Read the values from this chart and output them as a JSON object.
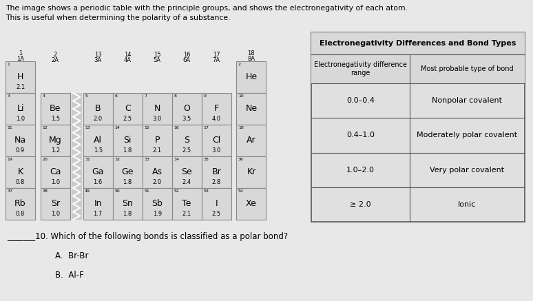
{
  "bg_color": "#d0d0d0",
  "cell_face": "#d8d8d8",
  "cell_edge": "#888888",
  "white_bg": "#f0f0f0",
  "elements": [
    {
      "symbol": "H",
      "en": "2.1",
      "col": 0,
      "row": 0,
      "num": "1"
    },
    {
      "symbol": "He",
      "en": "",
      "col": 8,
      "row": 0,
      "num": "2"
    },
    {
      "symbol": "Li",
      "en": "1.0",
      "col": 0,
      "row": 1,
      "num": "3"
    },
    {
      "symbol": "Be",
      "en": "1.5",
      "col": 1,
      "row": 1,
      "num": "4"
    },
    {
      "symbol": "B",
      "en": "2.0",
      "col": 2,
      "row": 1,
      "num": "5"
    },
    {
      "symbol": "C",
      "en": "2.5",
      "col": 3,
      "row": 1,
      "num": "6"
    },
    {
      "symbol": "N",
      "en": "3.0",
      "col": 4,
      "row": 1,
      "num": "7"
    },
    {
      "symbol": "O",
      "en": "3.5",
      "col": 5,
      "row": 1,
      "num": "8"
    },
    {
      "symbol": "F",
      "en": "4.0",
      "col": 6,
      "row": 1,
      "num": "9"
    },
    {
      "symbol": "Ne",
      "en": "",
      "col": 8,
      "row": 1,
      "num": "10"
    },
    {
      "symbol": "Na",
      "en": "0.9",
      "col": 0,
      "row": 2,
      "num": "11"
    },
    {
      "symbol": "Mg",
      "en": "1.2",
      "col": 1,
      "row": 2,
      "num": "12"
    },
    {
      "symbol": "Al",
      "en": "1.5",
      "col": 2,
      "row": 2,
      "num": "13"
    },
    {
      "symbol": "Si",
      "en": "1.8",
      "col": 3,
      "row": 2,
      "num": "14"
    },
    {
      "symbol": "P",
      "en": "2.1",
      "col": 4,
      "row": 2,
      "num": "15"
    },
    {
      "symbol": "S",
      "en": "2.5",
      "col": 5,
      "row": 2,
      "num": "16"
    },
    {
      "symbol": "Cl",
      "en": "3.0",
      "col": 6,
      "row": 2,
      "num": "17"
    },
    {
      "symbol": "Ar",
      "en": "",
      "col": 8,
      "row": 2,
      "num": "18"
    },
    {
      "symbol": "K",
      "en": "0.8",
      "col": 0,
      "row": 3,
      "num": "19"
    },
    {
      "symbol": "Ca",
      "en": "1.0",
      "col": 1,
      "row": 3,
      "num": "20"
    },
    {
      "symbol": "Ga",
      "en": "1.6",
      "col": 2,
      "row": 3,
      "num": "31"
    },
    {
      "symbol": "Ge",
      "en": "1.8",
      "col": 3,
      "row": 3,
      "num": "32"
    },
    {
      "symbol": "As",
      "en": "2.0",
      "col": 4,
      "row": 3,
      "num": "33"
    },
    {
      "symbol": "Se",
      "en": "2.4",
      "col": 5,
      "row": 3,
      "num": "34"
    },
    {
      "symbol": "Br",
      "en": "2.8",
      "col": 6,
      "row": 3,
      "num": "35"
    },
    {
      "symbol": "Kr",
      "en": "",
      "col": 8,
      "row": 3,
      "num": "36"
    },
    {
      "symbol": "Rb",
      "en": "0.8",
      "col": 0,
      "row": 4,
      "num": "37"
    },
    {
      "symbol": "Sr",
      "en": "1.0",
      "col": 1,
      "row": 4,
      "num": "38"
    },
    {
      "symbol": "In",
      "en": "1.7",
      "col": 2,
      "row": 4,
      "num": "49"
    },
    {
      "symbol": "Sn",
      "en": "1.8",
      "col": 3,
      "row": 4,
      "num": "50"
    },
    {
      "symbol": "Sb",
      "en": "1.9",
      "col": 4,
      "row": 4,
      "num": "51"
    },
    {
      "symbol": "Te",
      "en": "2.1",
      "col": 5,
      "row": 4,
      "num": "52"
    },
    {
      "symbol": "I",
      "en": "2.5",
      "col": 6,
      "row": 4,
      "num": "53"
    },
    {
      "symbol": "Xe",
      "en": "",
      "col": 8,
      "row": 4,
      "num": "54"
    }
  ],
  "bond_rows": [
    {
      "range": "0.0–0.4",
      "type": "Nonpolar covalent"
    },
    {
      "range": "0.4–1.0",
      "type": "Moderately polar covalent"
    },
    {
      "range": "1.0–2.0",
      "type": "Very polar covalent"
    },
    {
      "range": "≥ 2.0",
      "type": "Ionic"
    }
  ],
  "title": "The image shows a periodic table with the principle groups, and shows the electronegativity of each atom.\nThis is useful when determining the polarity of a substance.",
  "question": "_______10. Which of the following bonds is classified as a polar bond?",
  "ans_a": "A.  Br-Br",
  "ans_b": "B.  Al-F"
}
